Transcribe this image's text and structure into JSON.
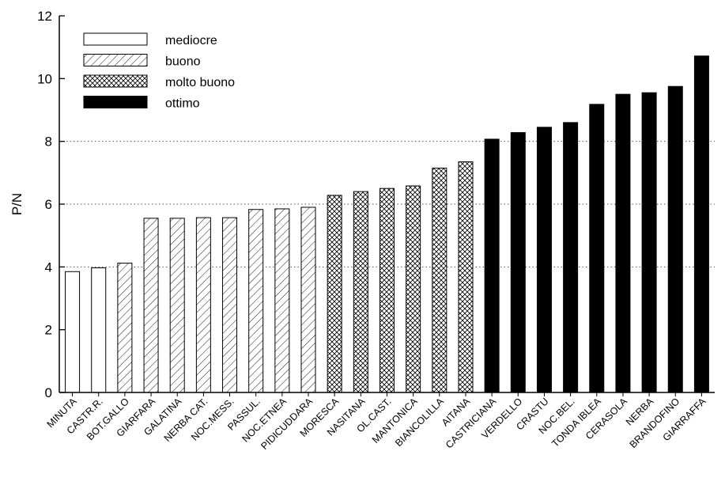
{
  "chart_data": {
    "type": "bar",
    "title": "",
    "xlabel": "",
    "ylabel": "P/N",
    "ylim": [
      0,
      12
    ],
    "yticks": [
      0,
      2,
      4,
      6,
      8,
      10,
      12
    ],
    "grid": "dotted horizontal lines at 4, 6 and 8",
    "legend_position": "top-left",
    "legend": [
      {
        "label": "mediocre",
        "pattern": "empty"
      },
      {
        "label": "buono",
        "pattern": "diagonal-hatch"
      },
      {
        "label": "molto buono",
        "pattern": "cross-hatch"
      },
      {
        "label": "ottimo",
        "pattern": "solid-black"
      }
    ],
    "categories": [
      "MINUTA",
      "CASTR.R.",
      "BOT.GALLO",
      "GIARFARA",
      "GALATINA",
      "NERBA CAT.",
      "NOC.MESS.",
      "PASSUL.",
      "NOC.ETNEA",
      "PIDICUDDARA",
      "MORESCA",
      "NASITANA",
      "OL.CAST.",
      "MANTONICA",
      "BIANCOLILLA",
      "AITANA",
      "CASTRICIANA",
      "VERDELLO",
      "CRASTU",
      "NOC.BEL.",
      "TONDA IBLEA",
      "CERASOLA",
      "NERBA",
      "BRANDOFINO",
      "GIARRAFFA"
    ],
    "values": [
      3.85,
      3.97,
      4.12,
      5.55,
      5.55,
      5.57,
      5.57,
      5.83,
      5.85,
      5.9,
      6.28,
      6.4,
      6.5,
      6.58,
      7.15,
      7.35,
      8.07,
      8.28,
      8.45,
      8.6,
      9.18,
      9.5,
      9.55,
      9.75,
      10.72
    ],
    "groups": [
      "mediocre",
      "mediocre",
      "buono",
      "buono",
      "buono",
      "buono",
      "buono",
      "buono",
      "buono",
      "buono",
      "molto buono",
      "molto buono",
      "molto buono",
      "molto buono",
      "molto buono",
      "molto buono",
      "ottimo",
      "ottimo",
      "ottimo",
      "ottimo",
      "ottimo",
      "ottimo",
      "ottimo",
      "ottimo",
      "ottimo"
    ],
    "colors": {
      "ink": "#000000",
      "background": "#ffffff",
      "grid": "#555555"
    }
  }
}
